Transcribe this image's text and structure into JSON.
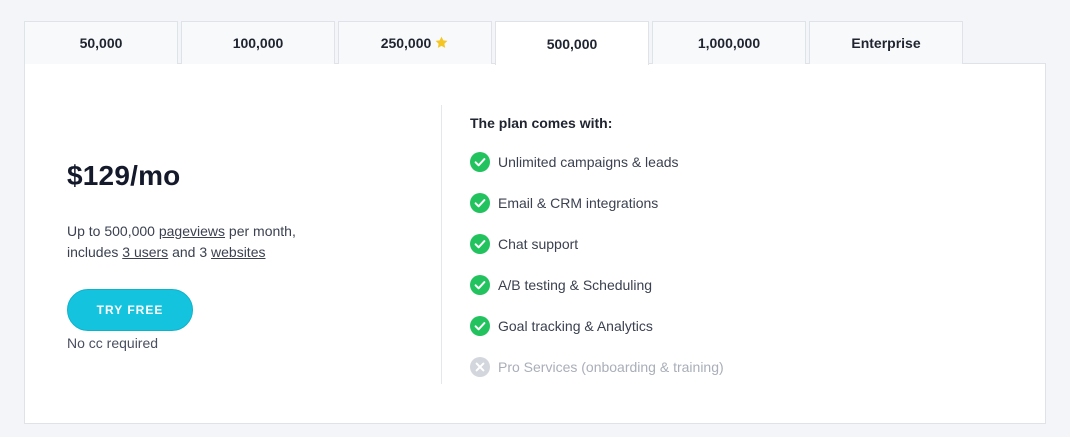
{
  "tabs": [
    {
      "label": "50,000",
      "active": false,
      "starred": false
    },
    {
      "label": "100,000",
      "active": false,
      "starred": false
    },
    {
      "label": "250,000",
      "active": false,
      "starred": true
    },
    {
      "label": "500,000",
      "active": true,
      "starred": false
    },
    {
      "label": "1,000,000",
      "active": false,
      "starred": false
    },
    {
      "label": "Enterprise",
      "active": false,
      "starred": false
    }
  ],
  "plan": {
    "price": "$129/mo",
    "desc_prefix": "Up to 500,000 ",
    "desc_pageviews": "pageviews",
    "desc_mid1": " per month,",
    "desc_includes": "includes ",
    "desc_users": "3 users",
    "desc_mid2": " and 3 ",
    "desc_websites": "websites",
    "cta_label": "TRY FREE",
    "cta_note": "No cc required"
  },
  "features": {
    "title": "The plan comes with:",
    "items": [
      {
        "label": "Unlimited campaigns & leads",
        "included": true,
        "icon": "check-circle-icon"
      },
      {
        "label": "Email & CRM integrations",
        "included": true,
        "icon": "check-circle-icon"
      },
      {
        "label": "Chat support",
        "included": true,
        "icon": "check-circle-icon"
      },
      {
        "label": "A/B testing & Scheduling",
        "included": true,
        "icon": "check-circle-icon"
      },
      {
        "label": "Goal tracking & Analytics",
        "included": true,
        "icon": "check-circle-icon"
      },
      {
        "label": "Pro Services (onboarding & training)",
        "included": false,
        "icon": "x-circle-icon"
      }
    ]
  },
  "colors": {
    "accent": "#14c4de",
    "check": "#22c35e",
    "disabled": "#d3d6dc",
    "star": "#f5c623"
  }
}
